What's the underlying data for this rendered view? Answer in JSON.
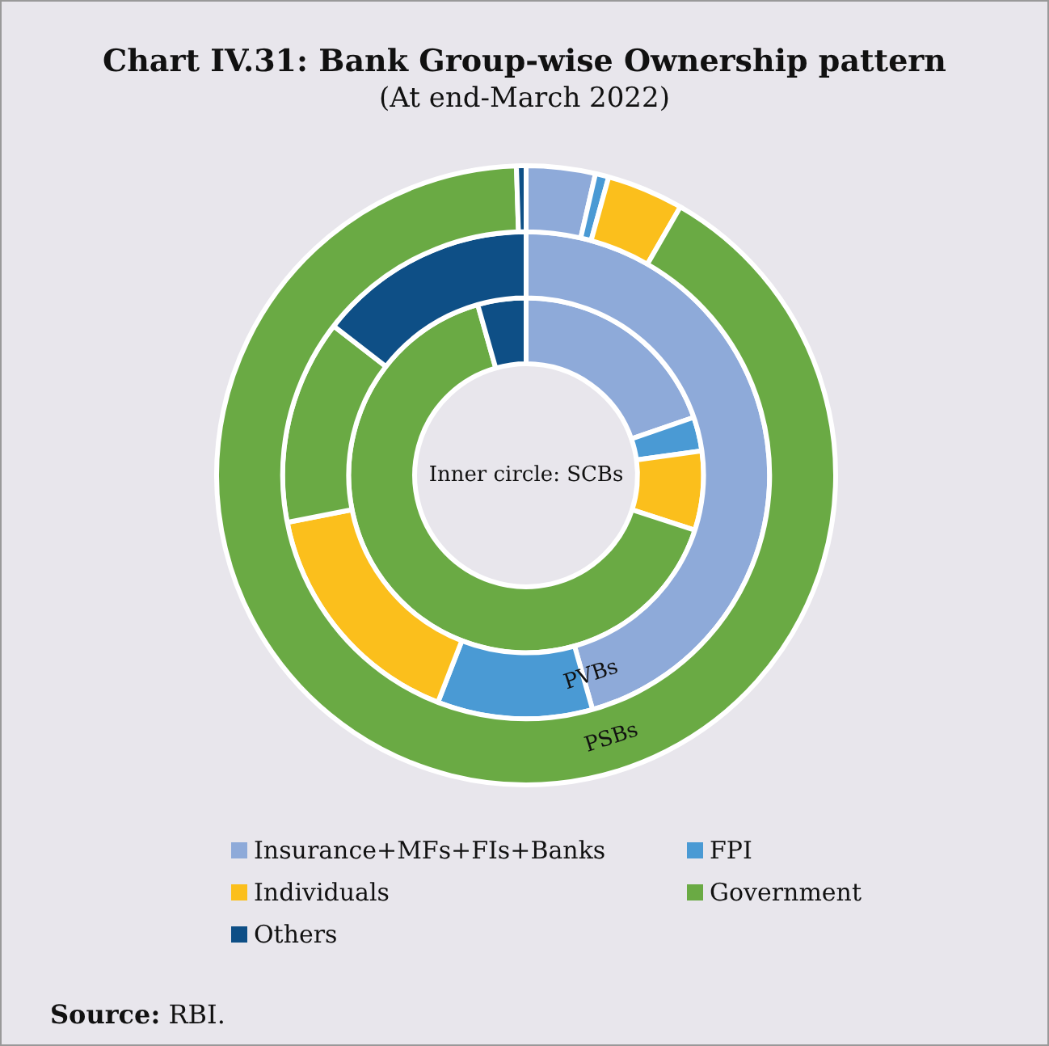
{
  "chart_data": {
    "type": "donut",
    "title": "Chart IV.31: Bank Group-wise Ownership pattern",
    "subtitle": "(At end-March 2022)",
    "categories": [
      "Insurance+MFs+FIs+Banks",
      "FPI",
      "Individuals",
      "Government",
      "Others"
    ],
    "colors": [
      "#8eaad9",
      "#4a9ad4",
      "#fbbf1c",
      "#6aaa44",
      "#0e4f86"
    ],
    "series": [
      {
        "name": "PSBs",
        "values": [
          3.6,
          0.7,
          4.0,
          91.2,
          0.5
        ]
      },
      {
        "name": "PVBs",
        "values": [
          45.6,
          10.3,
          16.0,
          13.6,
          14.5
        ]
      },
      {
        "values": [
          19.7,
          3.1,
          7.2,
          65.6,
          4.4
        ]
      }
    ],
    "legend": "bottom",
    "annotations": [
      "Inner circle: SCBs",
      "Source: RBI."
    ]
  }
}
